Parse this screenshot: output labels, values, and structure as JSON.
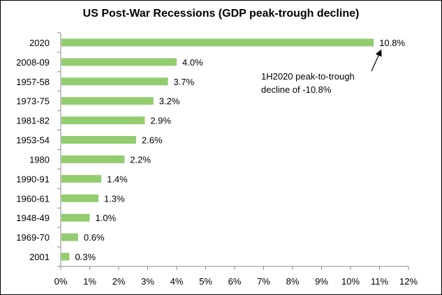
{
  "chart_data": {
    "type": "bar",
    "orientation": "horizontal",
    "title": "US Post-War Recessions (GDP peak-trough decline)",
    "categories": [
      "2020",
      "2008-09",
      "1957-58",
      "1973-75",
      "1981-82",
      "1953-54",
      "1980",
      "1990-91",
      "1960-61",
      "1948-49",
      "1969-70",
      "2001"
    ],
    "values": [
      10.8,
      4.0,
      3.7,
      3.2,
      2.9,
      2.6,
      2.2,
      1.4,
      1.3,
      1.0,
      0.6,
      0.3
    ],
    "data_labels": [
      "10.8%",
      "4.0%",
      "3.7%",
      "3.2%",
      "2.9%",
      "2.6%",
      "2.2%",
      "1.4%",
      "1.3%",
      "1.0%",
      "0.6%",
      "0.3%"
    ],
    "x_ticks": [
      "0%",
      "1%",
      "2%",
      "3%",
      "4%",
      "5%",
      "6%",
      "7%",
      "8%",
      "9%",
      "10%",
      "11%",
      "12%"
    ],
    "xlim": [
      0,
      12
    ],
    "grid": false,
    "legend": "none",
    "bar_color": "#92CC6F",
    "annotation": {
      "lines": [
        "1H2020 peak-to-trough",
        "decline of -10.8%"
      ],
      "points_to": "2020"
    }
  }
}
